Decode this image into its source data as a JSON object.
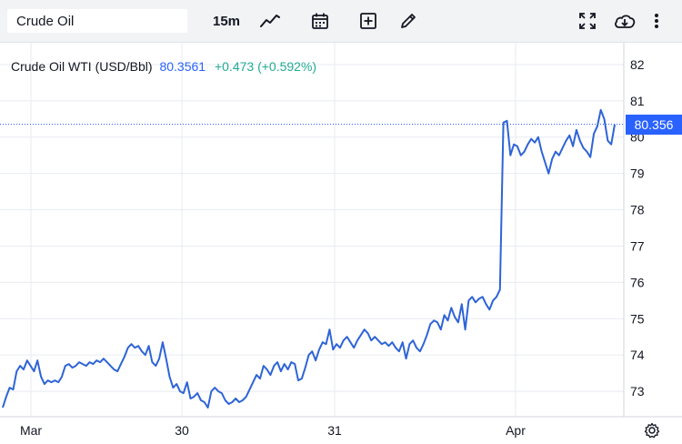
{
  "toolbar": {
    "search_value": "Crude Oil",
    "interval_label": "15m"
  },
  "legend": {
    "symbol": "Crude Oil WTI (USD/Bbl)",
    "last": "80.3561",
    "change": "+0.473 (+0.592%)"
  },
  "price_tag": "80.356",
  "colors": {
    "line": "#2e64d6",
    "accent": "#2962ff",
    "positive": "#22ab94",
    "grid": "#e8ebf0"
  },
  "chart_data": {
    "type": "line",
    "title": "",
    "xlabel": "",
    "ylabel": "",
    "x_ticks": [
      "Mar",
      "30",
      "31",
      "Apr"
    ],
    "y_ticks": [
      73,
      74,
      75,
      76,
      77,
      78,
      79,
      80,
      81,
      82
    ],
    "ylim": [
      72.3,
      82.6
    ],
    "grid": true,
    "last_price": 80.356,
    "series": [
      {
        "values": [
          72.55,
          72.85,
          73.1,
          73.05,
          73.55,
          73.7,
          73.6,
          73.85,
          73.7,
          73.55,
          73.85,
          73.4,
          73.2,
          73.3,
          73.25,
          73.3,
          73.25,
          73.4,
          73.7,
          73.75,
          73.65,
          73.7,
          73.8,
          73.75,
          73.7,
          73.8,
          73.75,
          73.85,
          73.8,
          73.9,
          73.8,
          73.7,
          73.6,
          73.55,
          73.75,
          73.95,
          74.2,
          74.3,
          74.2,
          74.25,
          74.1,
          74.0,
          74.25,
          73.8,
          73.7,
          73.9,
          74.35,
          73.9,
          73.4,
          73.1,
          73.2,
          73.0,
          72.95,
          73.25,
          72.8,
          72.85,
          72.95,
          72.75,
          72.7,
          72.55,
          73.0,
          73.1,
          73.0,
          72.95,
          72.75,
          72.65,
          72.7,
          72.8,
          72.7,
          72.75,
          72.85,
          73.05,
          73.25,
          73.45,
          73.35,
          73.7,
          73.6,
          73.45,
          73.7,
          73.8,
          73.55,
          73.75,
          73.6,
          73.8,
          73.75,
          73.3,
          73.35,
          73.65,
          74.0,
          74.1,
          73.85,
          74.15,
          74.35,
          74.3,
          74.7,
          74.15,
          74.3,
          74.2,
          74.4,
          74.5,
          74.35,
          74.2,
          74.4,
          74.55,
          74.7,
          74.6,
          74.4,
          74.5,
          74.4,
          74.3,
          74.35,
          74.25,
          74.35,
          74.2,
          74.1,
          74.35,
          73.9,
          74.3,
          74.4,
          74.2,
          74.1,
          74.3,
          74.55,
          74.85,
          74.95,
          74.9,
          74.7,
          75.1,
          74.95,
          75.3,
          75.05,
          74.9,
          75.4,
          74.7,
          75.5,
          75.6,
          75.45,
          75.55,
          75.6,
          75.4,
          75.25,
          75.5,
          75.6,
          75.8,
          80.4,
          80.45,
          79.5,
          79.8,
          79.75,
          79.5,
          79.6,
          79.8,
          79.95,
          79.85,
          80.0,
          79.6,
          79.3,
          79.0,
          79.4,
          79.6,
          79.5,
          79.7,
          79.9,
          80.05,
          79.75,
          80.2,
          79.9,
          79.7,
          79.6,
          79.45,
          80.1,
          80.3,
          80.75,
          80.5,
          79.9,
          79.8,
          80.35
        ]
      }
    ]
  }
}
